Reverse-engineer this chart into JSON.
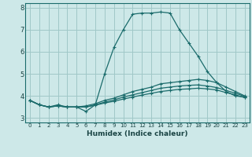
{
  "title": "",
  "xlabel": "Humidex (Indice chaleur)",
  "background_color": "#cde8e8",
  "grid_color": "#a0c8c8",
  "line_color": "#1a6b6b",
  "xlim": [
    -0.5,
    23.5
  ],
  "ylim": [
    2.8,
    8.2
  ],
  "yticks": [
    3,
    4,
    5,
    6,
    7,
    8
  ],
  "xticks": [
    0,
    1,
    2,
    3,
    4,
    5,
    6,
    7,
    8,
    9,
    10,
    11,
    12,
    13,
    14,
    15,
    16,
    17,
    18,
    19,
    20,
    21,
    22,
    23
  ],
  "lines": [
    {
      "x": [
        0,
        1,
        2,
        3,
        4,
        5,
        6,
        7,
        8,
        9,
        10,
        11,
        12,
        13,
        14,
        15,
        16,
        17,
        18,
        19,
        20,
        21,
        22,
        23
      ],
      "y": [
        3.8,
        3.6,
        3.5,
        3.6,
        3.5,
        3.5,
        3.3,
        3.6,
        5.0,
        6.2,
        7.0,
        7.7,
        7.75,
        7.75,
        7.8,
        7.75,
        7.0,
        6.4,
        5.8,
        5.1,
        4.6,
        4.2,
        4.0,
        3.95
      ]
    },
    {
      "x": [
        0,
        1,
        2,
        3,
        4,
        5,
        6,
        7,
        8,
        9,
        10,
        11,
        12,
        13,
        14,
        15,
        16,
        17,
        18,
        19,
        20,
        21,
        22,
        23
      ],
      "y": [
        3.8,
        3.6,
        3.5,
        3.55,
        3.5,
        3.5,
        3.55,
        3.65,
        3.8,
        3.9,
        4.05,
        4.2,
        4.3,
        4.4,
        4.55,
        4.6,
        4.65,
        4.7,
        4.75,
        4.7,
        4.6,
        4.4,
        4.2,
        4.0
      ]
    },
    {
      "x": [
        0,
        1,
        2,
        3,
        4,
        5,
        6,
        7,
        8,
        9,
        10,
        11,
        12,
        13,
        14,
        15,
        16,
        17,
        18,
        19,
        20,
        21,
        22,
        23
      ],
      "y": [
        3.8,
        3.6,
        3.5,
        3.55,
        3.5,
        3.5,
        3.5,
        3.6,
        3.72,
        3.82,
        3.95,
        4.05,
        4.15,
        4.25,
        4.35,
        4.4,
        4.45,
        4.48,
        4.5,
        4.45,
        4.38,
        4.25,
        4.12,
        3.98
      ]
    },
    {
      "x": [
        0,
        1,
        2,
        3,
        4,
        5,
        6,
        7,
        8,
        9,
        10,
        11,
        12,
        13,
        14,
        15,
        16,
        17,
        18,
        19,
        20,
        21,
        22,
        23
      ],
      "y": [
        3.8,
        3.6,
        3.5,
        3.55,
        3.5,
        3.5,
        3.5,
        3.58,
        3.68,
        3.76,
        3.86,
        3.95,
        4.04,
        4.12,
        4.2,
        4.25,
        4.3,
        4.32,
        4.35,
        4.32,
        4.27,
        4.15,
        4.05,
        3.92
      ]
    }
  ]
}
